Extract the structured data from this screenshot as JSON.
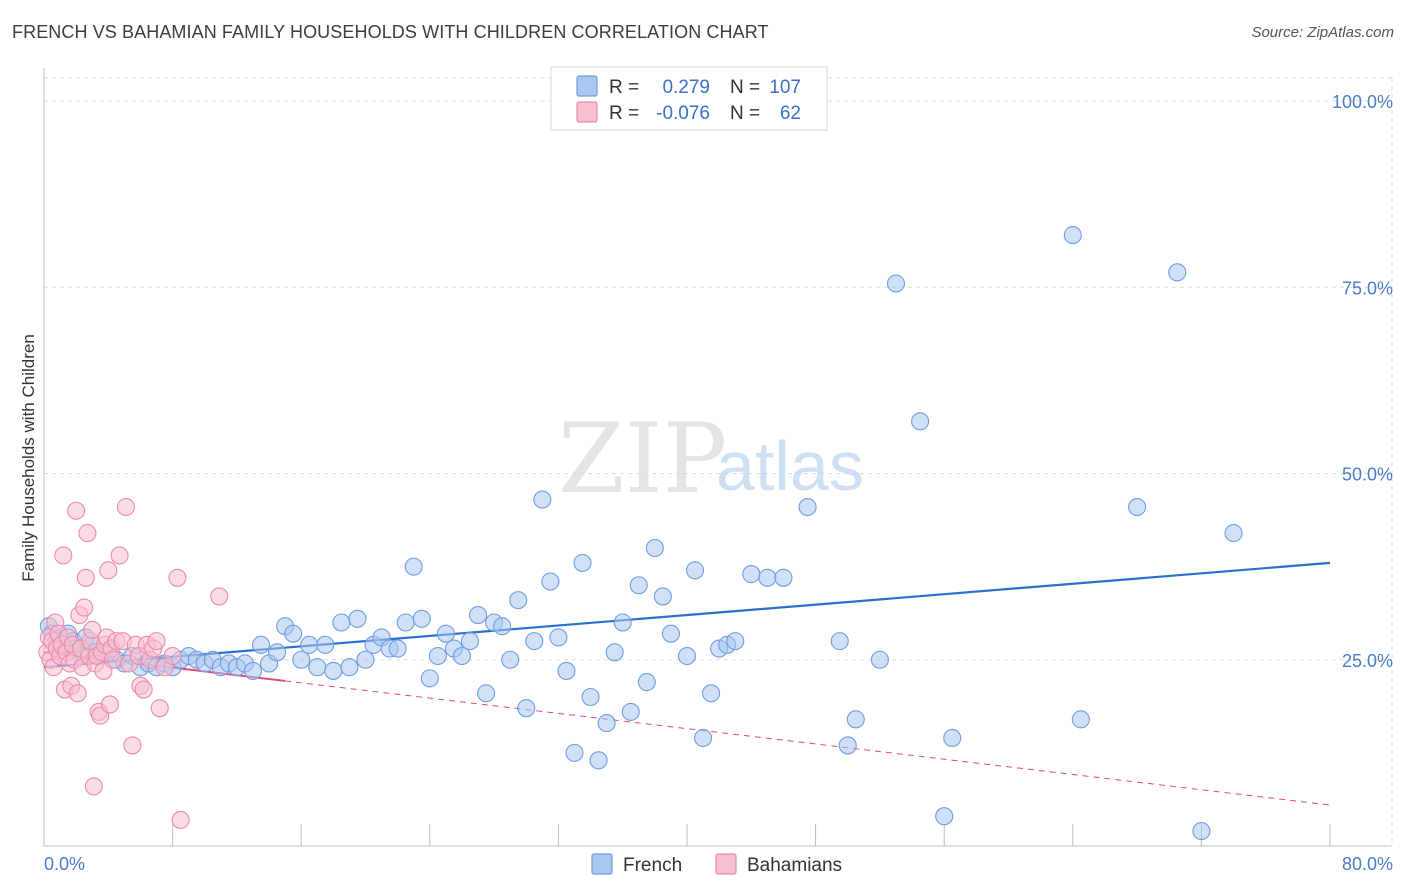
{
  "header": {
    "title": "FRENCH VS BAHAMIAN FAMILY HOUSEHOLDS WITH CHILDREN CORRELATION CHART",
    "source": "Source: ZipAtlas.com"
  },
  "watermark": {
    "zip": "ZIP",
    "atlas": "atlas"
  },
  "legend_top": {
    "rows": [
      {
        "r_label": "R =",
        "r_value": "0.279",
        "n_label": "N =",
        "n_value": "107",
        "color": "#7aaae8"
      },
      {
        "r_label": "R =",
        "r_value": "-0.076",
        "n_label": "N =",
        "n_value": "62",
        "color": "#f4a6bf"
      }
    ]
  },
  "colors": {
    "french_fill": "#a9c7ef",
    "french_stroke": "#6f9ee0",
    "french_line": "#2a6fd1",
    "bahamian_fill": "#f7bfd0",
    "bahamian_stroke": "#ec8aab",
    "bahamian_line": "#e0487f",
    "grid": "#dcdcdc",
    "tick_text": "#4a7cc7"
  },
  "chart_data": {
    "type": "scatter",
    "title": "FRENCH VS BAHAMIAN FAMILY HOUSEHOLDS WITH CHILDREN CORRELATION CHART",
    "xlabel": "",
    "ylabel": "Family Households with Children",
    "xlim": [
      0,
      80
    ],
    "ylim": [
      0,
      100
    ],
    "x_tick_labels": [
      "0.0%",
      "80.0%"
    ],
    "y_ticks": [
      25,
      50,
      75,
      100
    ],
    "y_tick_labels": [
      "25.0%",
      "50.0%",
      "75.0%",
      "100.0%"
    ],
    "grid": true,
    "legend_position": "bottom",
    "series": [
      {
        "name": "French",
        "r": 0.279,
        "n": 107,
        "trend": {
          "x": [
            0,
            80
          ],
          "y": [
            24.0,
            38.0
          ],
          "style": "solid"
        },
        "points": [
          [
            0.3,
            29.5
          ],
          [
            0.5,
            28.5
          ],
          [
            0.8,
            27.5
          ],
          [
            1.0,
            28.0
          ],
          [
            1.2,
            27.0
          ],
          [
            1.5,
            28.5
          ],
          [
            1.8,
            27.5
          ],
          [
            2.0,
            26.5
          ],
          [
            2.3,
            25.5
          ],
          [
            2.6,
            28.0
          ],
          [
            3.0,
            27.0
          ],
          [
            3.2,
            26.0
          ],
          [
            3.5,
            25.5
          ],
          [
            4.0,
            26.0
          ],
          [
            4.5,
            25.0
          ],
          [
            5.0,
            24.5
          ],
          [
            5.5,
            25.5
          ],
          [
            6.0,
            24.0
          ],
          [
            6.5,
            24.5
          ],
          [
            7.0,
            24.0
          ],
          [
            7.5,
            24.5
          ],
          [
            8.0,
            24.0
          ],
          [
            8.5,
            25.0
          ],
          [
            9.0,
            25.5
          ],
          [
            9.5,
            25.0
          ],
          [
            10.0,
            24.5
          ],
          [
            10.5,
            25.0
          ],
          [
            11.0,
            24.0
          ],
          [
            11.5,
            24.5
          ],
          [
            12.0,
            24.0
          ],
          [
            12.5,
            24.5
          ],
          [
            13.0,
            23.5
          ],
          [
            13.5,
            27.0
          ],
          [
            14.0,
            24.5
          ],
          [
            14.5,
            26.0
          ],
          [
            15.0,
            29.5
          ],
          [
            15.5,
            28.5
          ],
          [
            16.0,
            25.0
          ],
          [
            16.5,
            27.0
          ],
          [
            17.0,
            24.0
          ],
          [
            17.5,
            27.0
          ],
          [
            18.0,
            23.5
          ],
          [
            18.5,
            30.0
          ],
          [
            19.0,
            24.0
          ],
          [
            19.5,
            30.5
          ],
          [
            20.0,
            25.0
          ],
          [
            20.5,
            27.0
          ],
          [
            21.0,
            28.0
          ],
          [
            21.5,
            26.5
          ],
          [
            22.0,
            26.5
          ],
          [
            22.5,
            30.0
          ],
          [
            23.0,
            37.5
          ],
          [
            23.5,
            30.5
          ],
          [
            24.0,
            22.5
          ],
          [
            24.5,
            25.5
          ],
          [
            25.0,
            28.5
          ],
          [
            25.5,
            26.5
          ],
          [
            26.0,
            25.5
          ],
          [
            26.5,
            27.5
          ],
          [
            27.0,
            31.0
          ],
          [
            27.5,
            20.5
          ],
          [
            28.0,
            30.0
          ],
          [
            28.5,
            29.5
          ],
          [
            29.0,
            25.0
          ],
          [
            29.5,
            33.0
          ],
          [
            30.0,
            18.5
          ],
          [
            30.5,
            27.5
          ],
          [
            31.0,
            46.5
          ],
          [
            31.5,
            35.5
          ],
          [
            32.0,
            28.0
          ],
          [
            32.5,
            23.5
          ],
          [
            33.0,
            12.5
          ],
          [
            33.5,
            38.0
          ],
          [
            34.0,
            20.0
          ],
          [
            34.5,
            11.5
          ],
          [
            35.0,
            16.5
          ],
          [
            35.5,
            26.0
          ],
          [
            36.0,
            30.0
          ],
          [
            36.5,
            18.0
          ],
          [
            37.0,
            35.0
          ],
          [
            37.5,
            22.0
          ],
          [
            38.0,
            40.0
          ],
          [
            38.5,
            33.5
          ],
          [
            39.0,
            28.5
          ],
          [
            40.0,
            25.5
          ],
          [
            40.5,
            37.0
          ],
          [
            41.0,
            14.5
          ],
          [
            41.5,
            20.5
          ],
          [
            42.0,
            26.5
          ],
          [
            42.5,
            27.0
          ],
          [
            43.0,
            27.5
          ],
          [
            44.0,
            36.5
          ],
          [
            45.0,
            36.0
          ],
          [
            46.0,
            36.0
          ],
          [
            47.5,
            45.5
          ],
          [
            49.5,
            27.5
          ],
          [
            50.0,
            13.5
          ],
          [
            50.5,
            17.0
          ],
          [
            52.0,
            25.0
          ],
          [
            53.0,
            75.5
          ],
          [
            54.5,
            57.0
          ],
          [
            56.0,
            4.0
          ],
          [
            56.5,
            14.5
          ],
          [
            64.0,
            82.0
          ],
          [
            64.5,
            17.0
          ],
          [
            68.0,
            45.5
          ],
          [
            70.5,
            77.0
          ],
          [
            72.0,
            2.0
          ],
          [
            74.0,
            42.0
          ]
        ]
      },
      {
        "name": "Bahamians",
        "r": -0.076,
        "n": 62,
        "trend": {
          "x": [
            0,
            80
          ],
          "y": [
            26.0,
            5.5
          ],
          "style": "dashed",
          "solid_until": 15
        },
        "points": [
          [
            0.2,
            26.0
          ],
          [
            0.3,
            28.0
          ],
          [
            0.4,
            25.0
          ],
          [
            0.5,
            27.5
          ],
          [
            0.6,
            24.0
          ],
          [
            0.7,
            30.0
          ],
          [
            0.8,
            26.5
          ],
          [
            0.9,
            28.5
          ],
          [
            1.0,
            25.5
          ],
          [
            1.1,
            27.0
          ],
          [
            1.2,
            39.0
          ],
          [
            1.3,
            21.0
          ],
          [
            1.4,
            26.0
          ],
          [
            1.5,
            28.0
          ],
          [
            1.6,
            24.5
          ],
          [
            1.7,
            21.5
          ],
          [
            1.8,
            27.0
          ],
          [
            1.9,
            25.0
          ],
          [
            2.0,
            45.0
          ],
          [
            2.1,
            20.5
          ],
          [
            2.2,
            31.0
          ],
          [
            2.3,
            26.5
          ],
          [
            2.4,
            24.0
          ],
          [
            2.5,
            32.0
          ],
          [
            2.6,
            36.0
          ],
          [
            2.7,
            42.0
          ],
          [
            2.8,
            25.5
          ],
          [
            2.9,
            27.5
          ],
          [
            3.0,
            29.0
          ],
          [
            3.1,
            8.0
          ],
          [
            3.2,
            24.5
          ],
          [
            3.3,
            25.5
          ],
          [
            3.4,
            18.0
          ],
          [
            3.5,
            17.5
          ],
          [
            3.6,
            26.0
          ],
          [
            3.7,
            23.5
          ],
          [
            3.8,
            27.0
          ],
          [
            3.9,
            28.0
          ],
          [
            4.0,
            37.0
          ],
          [
            4.1,
            19.0
          ],
          [
            4.2,
            26.5
          ],
          [
            4.3,
            25.0
          ],
          [
            4.5,
            27.5
          ],
          [
            4.7,
            39.0
          ],
          [
            4.9,
            27.5
          ],
          [
            5.1,
            45.5
          ],
          [
            5.3,
            24.5
          ],
          [
            5.5,
            13.5
          ],
          [
            5.7,
            27.0
          ],
          [
            5.9,
            25.5
          ],
          [
            6.0,
            21.5
          ],
          [
            6.2,
            21.0
          ],
          [
            6.4,
            27.0
          ],
          [
            6.6,
            25.0
          ],
          [
            6.8,
            26.5
          ],
          [
            7.0,
            27.5
          ],
          [
            7.2,
            18.5
          ],
          [
            7.5,
            24.0
          ],
          [
            8.0,
            25.5
          ],
          [
            8.3,
            36.0
          ],
          [
            8.5,
            3.5
          ],
          [
            10.9,
            33.5
          ]
        ]
      }
    ]
  },
  "legend_bottom": {
    "items": [
      {
        "label": "French",
        "color": "#a9c7ef",
        "stroke": "#6f9ee0"
      },
      {
        "label": "Bahamians",
        "color": "#f7bfd0",
        "stroke": "#ec8aab"
      }
    ]
  }
}
